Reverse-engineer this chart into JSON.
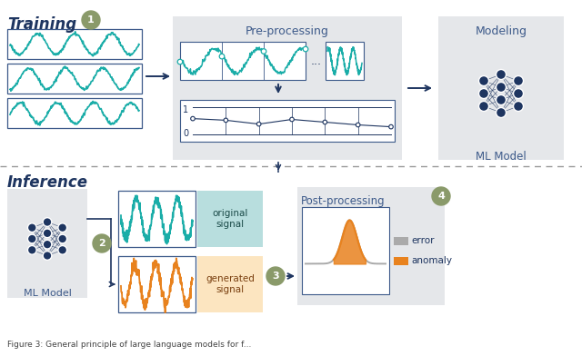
{
  "bg_color": "#ffffff",
  "teal_color": "#1aada8",
  "dark_navy": "#1e3560",
  "gray_bg": "#e5e7ea",
  "light_blue_bg": "#b8dede",
  "light_orange_bg": "#fce5c0",
  "olive_circle": "#8a9a6a",
  "arrow_color": "#1e3560",
  "orange_color": "#e8821e",
  "gray_signal": "#aaaaaa",
  "border_color": "#3d5a8a",
  "training_label": "Training",
  "inference_label": "Inference",
  "preprocessing_label": "Pre-processing",
  "modeling_label": "Modeling",
  "ml_model_label": "ML Model",
  "original_signal_label": "original\nsignal",
  "generated_signal_label": "generated\nsignal",
  "postprocessing_label": "Post-processing",
  "error_label": "error",
  "anomaly_label": "anomaly",
  "caption": "Figure 3: General principle of large language models for f..."
}
